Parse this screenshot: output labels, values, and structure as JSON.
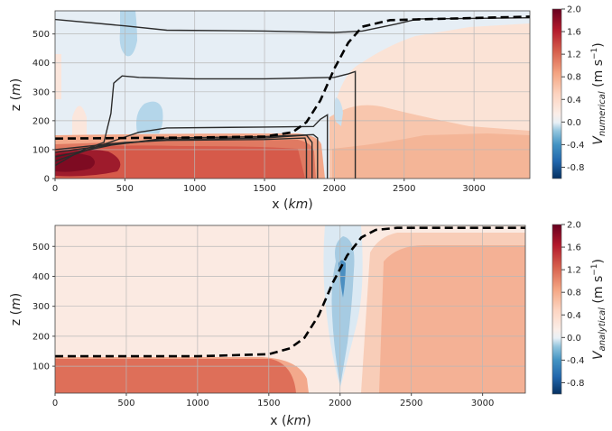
{
  "chart_data": [
    {
      "type": "heatmap",
      "panel": "top",
      "xlabel": "x (km)",
      "ylabel": "z (m)",
      "xlim": [
        0,
        3400
      ],
      "ylim": [
        0,
        580
      ],
      "x_ticks": [
        "0",
        "500",
        "1000",
        "1500",
        "2000",
        "2500",
        "3000"
      ],
      "y_ticks": [
        "0",
        "100",
        "200",
        "300",
        "400",
        "500"
      ],
      "grid": true,
      "colorbar": {
        "label": "V_numerical (m s^-1)",
        "label_main": "V",
        "label_sub": "numerical",
        "label_units": "(m s",
        "label_exp": "−1",
        "range": [
          -1.0,
          2.0
        ],
        "ticks": [
          "2.0",
          "1.6",
          "1.2",
          "0.8",
          "0.4",
          "0.0",
          "-0.4",
          "-0.8"
        ]
      },
      "interface": {
        "style": "dashed",
        "color": "#000000",
        "points": [
          [
            0,
            138
          ],
          [
            1000,
            142
          ],
          [
            1500,
            145
          ],
          [
            1700,
            160
          ],
          [
            1800,
            195
          ],
          [
            1900,
            270
          ],
          [
            2000,
            380
          ],
          [
            2100,
            470
          ],
          [
            2200,
            525
          ],
          [
            2400,
            548
          ],
          [
            3400,
            560
          ]
        ]
      },
      "contours": [
        {
          "level": "a",
          "points": [
            [
              0,
              550
            ],
            [
              500,
              528
            ],
            [
              800,
              513
            ],
            [
              1500,
              510
            ],
            [
              2000,
              505
            ],
            [
              2200,
              510
            ],
            [
              2450,
              535
            ],
            [
              2600,
              552
            ],
            [
              3400,
              556
            ]
          ]
        },
        {
          "level": "b",
          "points": [
            [
              0,
              45
            ],
            [
              180,
              95
            ],
            [
              350,
              125
            ],
            [
              400,
              225
            ],
            [
              420,
              330
            ],
            [
              480,
              355
            ],
            [
              600,
              350
            ],
            [
              1000,
              345
            ],
            [
              1500,
              345
            ],
            [
              2000,
              350
            ],
            [
              2100,
              362
            ],
            [
              2150,
              370
            ],
            [
              2150,
              0
            ]
          ]
        },
        {
          "level": "c",
          "points": [
            [
              0,
              60
            ],
            [
              300,
              110
            ],
            [
              600,
              160
            ],
            [
              800,
              175
            ],
            [
              1500,
              178
            ],
            [
              1850,
              180
            ],
            [
              1900,
              205
            ],
            [
              1950,
              220
            ],
            [
              1950,
              0
            ]
          ]
        },
        {
          "level": "d",
          "points": [
            [
              0,
              75
            ],
            [
              400,
              115
            ],
            [
              800,
              140
            ],
            [
              1500,
              145
            ],
            [
              1850,
              152
            ],
            [
              1880,
              140
            ],
            [
              1880,
              0
            ]
          ]
        },
        {
          "level": "e",
          "points": [
            [
              0,
              90
            ],
            [
              450,
              120
            ],
            [
              800,
              135
            ],
            [
              1500,
              140
            ],
            [
              1800,
              150
            ],
            [
              1840,
              125
            ],
            [
              1840,
              0
            ]
          ]
        },
        {
          "level": "f",
          "points": [
            [
              0,
              100
            ],
            [
              500,
              125
            ],
            [
              800,
              132
            ],
            [
              1500,
              135
            ],
            [
              1790,
              140
            ],
            [
              1800,
              120
            ],
            [
              1800,
              0
            ]
          ]
        }
      ],
      "regions": [
        {
          "kind": "background",
          "value": 0.1,
          "color": "#ffffff"
        },
        {
          "kind": "upper",
          "value": -0.05,
          "color": "#e3ecf4"
        },
        {
          "kind": "lower-layer",
          "value": 1.2,
          "color": "#e3705e"
        },
        {
          "kind": "core",
          "value": 1.8,
          "color": "#9e1b2c"
        },
        {
          "kind": "right-warm",
          "value": 0.6,
          "color": "#f6b99d"
        },
        {
          "kind": "right-light",
          "value": 0.3,
          "color": "#fbe0d3"
        },
        {
          "kind": "negative-blob",
          "value": -0.3,
          "color": "#a9d0e6"
        }
      ]
    },
    {
      "type": "heatmap",
      "panel": "bottom",
      "xlabel": "x (km)",
      "ylabel": "z (m)",
      "xlim": [
        0,
        3300
      ],
      "ylim": [
        10,
        570
      ],
      "x_ticks": [
        "0",
        "500",
        "1000",
        "1500",
        "2000",
        "2500",
        "3000"
      ],
      "y_ticks": [
        "100",
        "200",
        "300",
        "400",
        "500"
      ],
      "grid": true,
      "colorbar": {
        "label": "V_analytical (m s^-1)",
        "label_main": "V",
        "label_sub": "analytical",
        "label_units": "(m s",
        "label_exp": "−1",
        "range": [
          -1.0,
          2.0
        ],
        "ticks": [
          "2.0",
          "1.6",
          "1.2",
          "0.8",
          "0.4",
          "0.0",
          "-0.4",
          "-0.8"
        ]
      },
      "interface": {
        "style": "dashed",
        "color": "#000000",
        "points": [
          [
            0,
            133
          ],
          [
            1000,
            133
          ],
          [
            1500,
            140
          ],
          [
            1650,
            160
          ],
          [
            1750,
            195
          ],
          [
            1850,
            270
          ],
          [
            1950,
            380
          ],
          [
            2050,
            470
          ],
          [
            2150,
            530
          ],
          [
            2250,
            555
          ],
          [
            2400,
            562
          ],
          [
            3300,
            562
          ]
        ]
      },
      "regions": [
        {
          "kind": "background",
          "value": 0.15,
          "color": "#fbeae2"
        },
        {
          "kind": "lower-layer",
          "value": 1.0,
          "color": "#de6f59"
        },
        {
          "kind": "right-warm",
          "value": 0.6,
          "color": "#f4b195"
        },
        {
          "kind": "negative-wedge",
          "value": -0.4,
          "color": "#9ec7e0"
        },
        {
          "kind": "negative-core",
          "value": -0.8,
          "color": "#3b7fb8"
        }
      ]
    }
  ],
  "colormap": [
    "#053061",
    "#2166ac",
    "#4393c3",
    "#92c5de",
    "#d1e5f0",
    "#f7f7f7",
    "#fddbc7",
    "#f4a582",
    "#d6604d",
    "#b2182b",
    "#67001f"
  ]
}
